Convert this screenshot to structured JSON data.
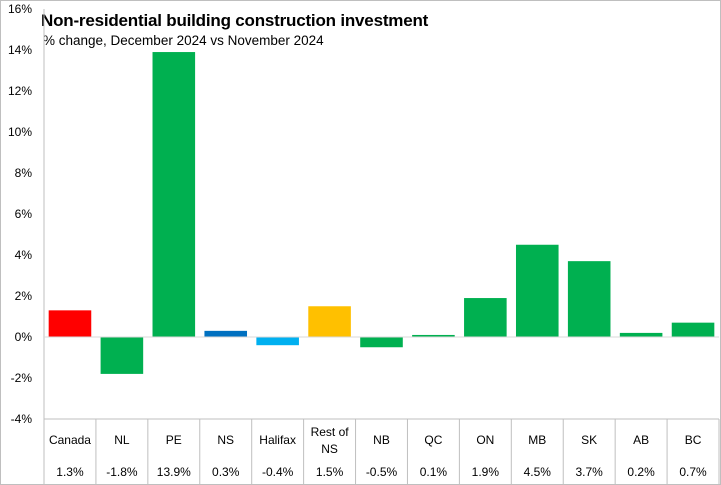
{
  "chart_data": {
    "type": "bar",
    "title": "Non-residential building construction investment",
    "subtitle": "% change, December 2024 vs November 2024",
    "categories": [
      "Canada",
      "NL",
      "PE",
      "NS",
      "Halifax",
      "Rest of NS",
      "NB",
      "QC",
      "ON",
      "MB",
      "SK",
      "AB",
      "BC"
    ],
    "values": [
      1.3,
      -1.8,
      13.9,
      0.3,
      -0.4,
      1.5,
      -0.5,
      0.1,
      1.9,
      4.5,
      3.7,
      0.2,
      0.7
    ],
    "value_labels": [
      "1.3%",
      "-1.8%",
      "13.9%",
      "0.3%",
      "-0.4%",
      "1.5%",
      "-0.5%",
      "0.1%",
      "1.9%",
      "4.5%",
      "3.7%",
      "0.2%",
      "0.7%"
    ],
    "colors": [
      "#ff0000",
      "#00b050",
      "#00b050",
      "#0070c0",
      "#00b0f0",
      "#ffc000",
      "#00b050",
      "#00b050",
      "#00b050",
      "#00b050",
      "#00b050",
      "#00b050",
      "#00b050"
    ],
    "ylim": [
      -4,
      16
    ],
    "yticks": [
      -4,
      -2,
      0,
      2,
      4,
      6,
      8,
      10,
      12,
      14,
      16
    ],
    "ytick_labels": [
      "-4%",
      "-2%",
      "0%",
      "2%",
      "4%",
      "6%",
      "8%",
      "10%",
      "12%",
      "14%",
      "16%"
    ],
    "xlabel": "",
    "ylabel": "",
    "grid": false,
    "legend": "none"
  }
}
